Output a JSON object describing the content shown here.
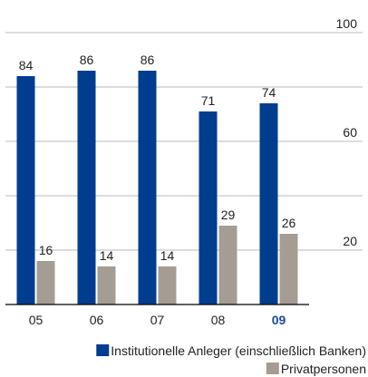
{
  "chart_data": {
    "type": "bar",
    "categories": [
      "05",
      "06",
      "07",
      "08",
      "09"
    ],
    "series": [
      {
        "name": "Institutionelle Anleger (einschließlich Banken)",
        "color": "#003d8f",
        "values": [
          84,
          86,
          86,
          71,
          74
        ]
      },
      {
        "name": "Privatpersonen",
        "color": "#a59c94",
        "values": [
          16,
          14,
          14,
          29,
          26
        ]
      }
    ],
    "ylim": [
      0,
      100
    ],
    "yticks": [
      20,
      60,
      100
    ],
    "minor_yticks": [
      40,
      80
    ],
    "grid": true,
    "y_axis_side": "right",
    "legend": "bottom-right",
    "highlight_index": 4,
    "highlight_color": "#1a4a9c"
  }
}
